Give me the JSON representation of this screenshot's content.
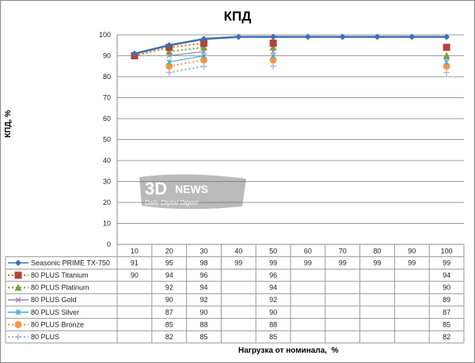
{
  "chart_data": {
    "type": "line",
    "title": "КПД",
    "xlabel": "Нагрузка от номинала,  %",
    "ylabel": "КПД, %",
    "ylim": [
      0,
      100
    ],
    "yticks": [
      0,
      10,
      20,
      30,
      40,
      50,
      60,
      70,
      80,
      90,
      100
    ],
    "grid": true,
    "legend": "data-table-left",
    "categories": [
      "10",
      "20",
      "30",
      "40",
      "50",
      "60",
      "70",
      "80",
      "90",
      "100"
    ],
    "series": [
      {
        "name": "Seasonic PRIME  TX-750",
        "color": "#3d6fb0",
        "style": "solid",
        "marker": "diamond",
        "values": [
          91,
          95,
          98,
          99,
          99,
          99,
          99,
          99,
          99,
          99
        ]
      },
      {
        "name": "80 PLUS Titanium",
        "color": "#e46c0a",
        "markerColor": "#b3403a",
        "style": "dotted",
        "marker": "square",
        "values": [
          90,
          94,
          96,
          null,
          96,
          null,
          null,
          null,
          null,
          94
        ]
      },
      {
        "name": "80 PLUS Platinum",
        "color": "#77a33c",
        "style": "dotted",
        "marker": "triangle",
        "values": [
          null,
          92,
          94,
          null,
          94,
          null,
          null,
          null,
          null,
          90
        ]
      },
      {
        "name": "80 PLUS Gold",
        "color": "#9b86bd",
        "style": "solid",
        "marker": "x",
        "values": [
          null,
          90,
          92,
          null,
          92,
          null,
          null,
          null,
          null,
          89
        ]
      },
      {
        "name": "80 PLUS Silver",
        "color": "#4aacc6",
        "style": "solid",
        "marker": "star",
        "values": [
          null,
          87,
          90,
          null,
          90,
          null,
          null,
          null,
          null,
          87
        ]
      },
      {
        "name": "80 PLUS Bronze",
        "color": "#f79646",
        "style": "dotted",
        "marker": "circle",
        "values": [
          null,
          85,
          88,
          null,
          88,
          null,
          null,
          null,
          null,
          85
        ]
      },
      {
        "name": "80 PLUS",
        "color": "#95b3d7",
        "style": "dotted",
        "marker": "plus",
        "values": [
          null,
          82,
          85,
          null,
          85,
          null,
          null,
          null,
          null,
          82
        ]
      }
    ]
  },
  "watermark": "3DNews Daily Digital Digest"
}
